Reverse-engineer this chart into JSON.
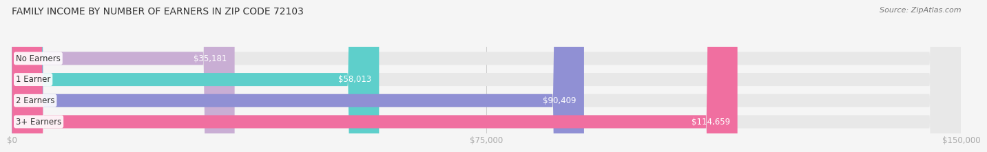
{
  "title": "FAMILY INCOME BY NUMBER OF EARNERS IN ZIP CODE 72103",
  "source": "Source: ZipAtlas.com",
  "categories": [
    "No Earners",
    "1 Earner",
    "2 Earners",
    "3+ Earners"
  ],
  "values": [
    35181,
    58013,
    90409,
    114659
  ],
  "labels": [
    "$35,181",
    "$58,013",
    "$90,409",
    "$114,659"
  ],
  "bar_colors": [
    "#c9aed4",
    "#5ecfcb",
    "#9090d4",
    "#f06fa0"
  ],
  "bar_bg_color": "#e8e8e8",
  "x_max": 150000,
  "x_tick_labels": [
    "$0",
    "$75,000",
    "$150,000"
  ],
  "title_fontsize": 10,
  "source_fontsize": 8,
  "label_fontsize": 8.5,
  "category_fontsize": 8.5,
  "bar_height": 0.62,
  "bg_color": "#f5f5f5",
  "label_color": "#ffffff",
  "category_bg": "#ffffff",
  "tick_color": "#aaaaaa"
}
